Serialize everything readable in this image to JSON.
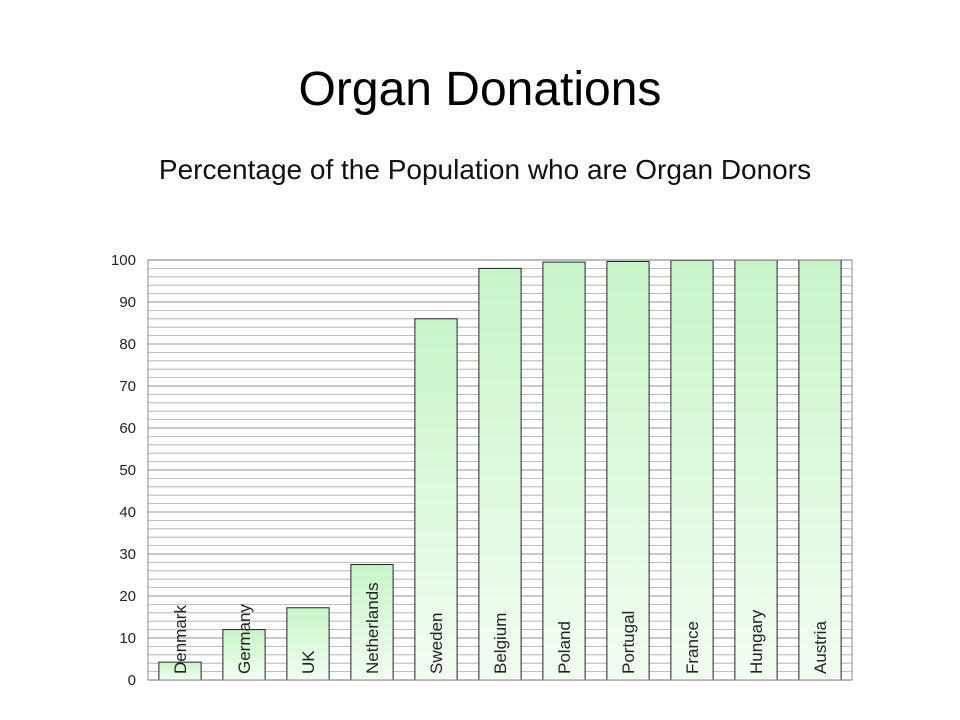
{
  "slide": {
    "title": "Organ Donations",
    "subtitle": "Percentage of the Population who are Organ Donors"
  },
  "chart_data": {
    "type": "bar",
    "title": "Percentage of the Population who are Organ Donors",
    "xlabel": "",
    "ylabel": "",
    "categories": [
      "Denmark",
      "Germany",
      "UK",
      "Netherlands",
      "Sweden",
      "Belgium",
      "Poland",
      "Portugal",
      "France",
      "Hungary",
      "Austria"
    ],
    "values": [
      4.25,
      12,
      17.2,
      27.5,
      86,
      98,
      99.5,
      99.64,
      99.91,
      99.97,
      99.98
    ],
    "ylim": [
      0,
      100
    ],
    "yticks": [
      "0",
      "10",
      "20",
      "30",
      "40",
      "50",
      "60",
      "70",
      "80",
      "90",
      "100"
    ],
    "minor_grid_step": 2,
    "grid": true,
    "bar_color": "#c8f5c8",
    "bar_color_bottom": "#f2fdf2",
    "bar_edge_color": "#222222",
    "grid_color": "#aaaaaa"
  }
}
